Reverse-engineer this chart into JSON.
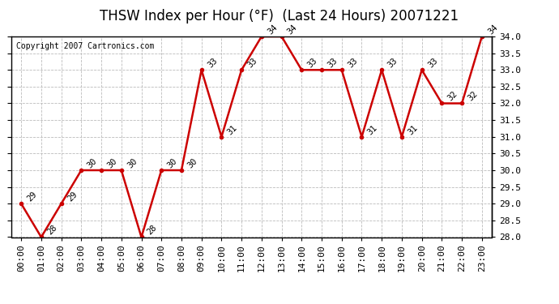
{
  "title": "THSW Index per Hour (°F)  (Last 24 Hours) 20071221",
  "copyright": "Copyright 2007 Cartronics.com",
  "hours": [
    "00:00",
    "01:00",
    "02:00",
    "03:00",
    "04:00",
    "05:00",
    "06:00",
    "07:00",
    "08:00",
    "09:00",
    "10:00",
    "11:00",
    "12:00",
    "13:00",
    "14:00",
    "15:00",
    "16:00",
    "17:00",
    "18:00",
    "19:00",
    "20:00",
    "21:00",
    "22:00",
    "23:00"
  ],
  "values": [
    29,
    28,
    29,
    30,
    30,
    30,
    28,
    30,
    30,
    33,
    31,
    33,
    34,
    34,
    33,
    33,
    33,
    31,
    33,
    31,
    33,
    32,
    32,
    34
  ],
  "ylim": [
    28.0,
    34.0
  ],
  "ytick_step": 0.5,
  "line_color": "#cc0000",
  "marker": "o",
  "marker_size": 3,
  "bg_color": "#ffffff",
  "grid_color": "#bbbbbb",
  "label_fontsize": 7.5,
  "title_fontsize": 12,
  "copyright_fontsize": 7,
  "tick_fontsize": 8
}
